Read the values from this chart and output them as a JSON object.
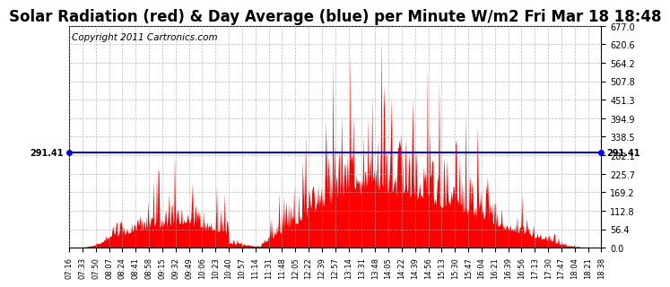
{
  "title": "Solar Radiation (red) & Day Average (blue) per Minute W/m2 Fri Mar 18 18:48",
  "copyright": "Copyright 2011 Cartronics.com",
  "avg_value": 291.41,
  "y_max": 677.0,
  "y_min": 0.0,
  "y_ticks": [
    0.0,
    56.4,
    112.8,
    169.2,
    225.7,
    282.1,
    338.5,
    394.9,
    451.3,
    507.8,
    564.2,
    620.6,
    677.0
  ],
  "fill_color": "red",
  "avg_line_color": "blue",
  "background_color": "white",
  "grid_color": "#aaaaaa",
  "title_fontsize": 12,
  "copyright_fontsize": 7.5,
  "x_tick_labels": [
    "07:16",
    "07:33",
    "07:50",
    "08:07",
    "08:24",
    "08:41",
    "08:58",
    "09:15",
    "09:32",
    "09:49",
    "10:06",
    "10:23",
    "10:40",
    "10:57",
    "11:14",
    "11:31",
    "11:48",
    "12:05",
    "12:22",
    "12:39",
    "12:57",
    "13:14",
    "13:31",
    "13:48",
    "14:05",
    "14:22",
    "14:39",
    "14:56",
    "15:13",
    "15:30",
    "15:47",
    "16:04",
    "16:21",
    "16:39",
    "16:56",
    "17:13",
    "17:30",
    "17:47",
    "18:04",
    "18:21",
    "18:38"
  ],
  "num_points": 683,
  "seed": 7
}
